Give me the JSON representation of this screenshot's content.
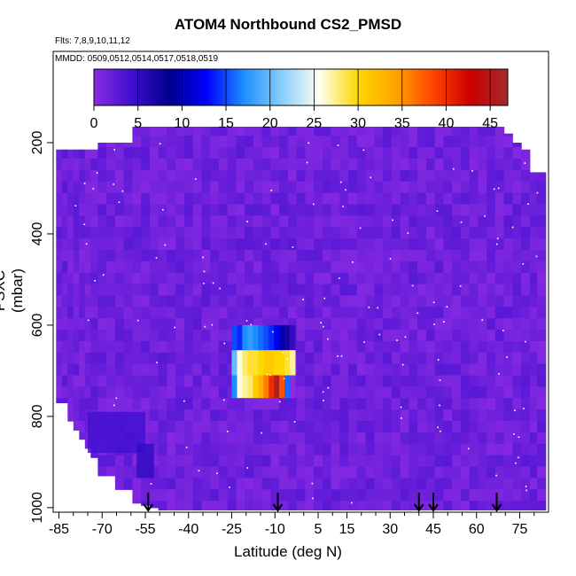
{
  "chart_data": {
    "type": "heatmap",
    "title": "ATOM4 Northbound CS2_PMSD",
    "subtitle_flights": "Flts: 7,8,9,10,11,12",
    "subtitle_dates": "MMDD: 0509,0512,0514,0517,0518,0519",
    "xlabel": "Latitude (deg N)",
    "ylabel": "PSXC (mbar)",
    "xlim": [
      -87,
      85
    ],
    "ylim": [
      1010,
      0
    ],
    "x_ticks": [
      -85,
      -70,
      -55,
      -40,
      -25,
      -10,
      5,
      15,
      30,
      45,
      60,
      75
    ],
    "x_minor_ticks": [
      -80,
      -75,
      -65,
      -60,
      -50,
      -45,
      -35,
      -30,
      -20,
      -15,
      -5,
      0,
      10,
      20,
      25,
      35,
      40,
      50,
      55,
      65,
      70,
      80
    ],
    "y_ticks": [
      200,
      400,
      600,
      800,
      1000
    ],
    "colorbar": {
      "range": [
        0,
        47
      ],
      "ticks": [
        0,
        5,
        10,
        15,
        20,
        25,
        30,
        35,
        40,
        45
      ],
      "colors": [
        "#8a2be2",
        "#3f0fd0",
        "#00008b",
        "#0000ff",
        "#1e90ff",
        "#87cefa",
        "#fffff0",
        "#ffd700",
        "#ffa500",
        "#ff4500",
        "#cc0000",
        "#a52a2a"
      ]
    },
    "profiles": [
      {
        "lat": -85,
        "ptop": 215,
        "pbot": 770
      },
      {
        "lat": -83,
        "ptop": 215,
        "pbot": 770
      },
      {
        "lat": -81,
        "ptop": 215,
        "pbot": 810
      },
      {
        "lat": -79,
        "ptop": 215,
        "pbot": 830
      },
      {
        "lat": -77,
        "ptop": 215,
        "pbot": 850
      },
      {
        "lat": -75,
        "ptop": 215,
        "pbot": 870
      },
      {
        "lat": -73,
        "ptop": 215,
        "pbot": 890
      },
      {
        "lat": -70,
        "ptop": 200,
        "pbot": 930
      },
      {
        "lat": -67,
        "ptop": 200,
        "pbot": 930
      },
      {
        "lat": -64,
        "ptop": 200,
        "pbot": 960
      },
      {
        "lat": -61,
        "ptop": 200,
        "pbot": 960
      },
      {
        "lat": -58,
        "ptop": 165,
        "pbot": 990
      },
      {
        "lat": -55,
        "ptop": 165,
        "pbot": 995
      },
      {
        "lat": -52,
        "ptop": 165,
        "pbot": 1000
      },
      {
        "lat": -49,
        "ptop": 165,
        "pbot": 1005
      },
      {
        "lat": -46,
        "ptop": 165,
        "pbot": 1005
      },
      {
        "lat": -43,
        "ptop": 165,
        "pbot": 1005
      },
      {
        "lat": -40,
        "ptop": 165,
        "pbot": 1005
      },
      {
        "lat": -37,
        "ptop": 165,
        "pbot": 1005
      },
      {
        "lat": -34,
        "ptop": 165,
        "pbot": 1005
      },
      {
        "lat": -31,
        "ptop": 165,
        "pbot": 1005
      },
      {
        "lat": -28,
        "ptop": 165,
        "pbot": 1005
      },
      {
        "lat": -25,
        "ptop": 165,
        "pbot": 1005
      },
      {
        "lat": -22,
        "ptop": 165,
        "pbot": 1005
      },
      {
        "lat": -19,
        "ptop": 165,
        "pbot": 1005
      },
      {
        "lat": -16,
        "ptop": 165,
        "pbot": 1005
      },
      {
        "lat": -13,
        "ptop": 165,
        "pbot": 1005
      },
      {
        "lat": -10,
        "ptop": 165,
        "pbot": 1005
      },
      {
        "lat": -7,
        "ptop": 165,
        "pbot": 1005
      },
      {
        "lat": -4,
        "ptop": 165,
        "pbot": 1005
      },
      {
        "lat": -1,
        "ptop": 165,
        "pbot": 1005
      },
      {
        "lat": 2,
        "ptop": 165,
        "pbot": 1005
      },
      {
        "lat": 5,
        "ptop": 165,
        "pbot": 1005
      },
      {
        "lat": 8,
        "ptop": 165,
        "pbot": 1005
      },
      {
        "lat": 11,
        "ptop": 165,
        "pbot": 1005
      },
      {
        "lat": 14,
        "ptop": 165,
        "pbot": 1005
      },
      {
        "lat": 17,
        "ptop": 165,
        "pbot": 1005
      },
      {
        "lat": 20,
        "ptop": 165,
        "pbot": 1005
      },
      {
        "lat": 23,
        "ptop": 165,
        "pbot": 1005
      },
      {
        "lat": 26,
        "ptop": 165,
        "pbot": 1005
      },
      {
        "lat": 29,
        "ptop": 165,
        "pbot": 1005
      },
      {
        "lat": 32,
        "ptop": 165,
        "pbot": 1005
      },
      {
        "lat": 35,
        "ptop": 165,
        "pbot": 1005
      },
      {
        "lat": 38,
        "ptop": 165,
        "pbot": 1005
      },
      {
        "lat": 41,
        "ptop": 165,
        "pbot": 1005
      },
      {
        "lat": 44,
        "ptop": 165,
        "pbot": 1005
      },
      {
        "lat": 47,
        "ptop": 165,
        "pbot": 1005
      },
      {
        "lat": 50,
        "ptop": 165,
        "pbot": 1005
      },
      {
        "lat": 53,
        "ptop": 165,
        "pbot": 1005
      },
      {
        "lat": 56,
        "ptop": 165,
        "pbot": 1005
      },
      {
        "lat": 59,
        "ptop": 165,
        "pbot": 1005
      },
      {
        "lat": 62,
        "ptop": 165,
        "pbot": 1005
      },
      {
        "lat": 65,
        "ptop": 165,
        "pbot": 1005
      },
      {
        "lat": 68,
        "ptop": 165,
        "pbot": 1005
      },
      {
        "lat": 71,
        "ptop": 180,
        "pbot": 1005
      },
      {
        "lat": 74,
        "ptop": 200,
        "pbot": 1005
      },
      {
        "lat": 77,
        "ptop": 215,
        "pbot": 1005
      },
      {
        "lat": 80,
        "ptop": 265,
        "pbot": 1005
      },
      {
        "lat": 82,
        "ptop": 265,
        "pbot": 1005
      }
    ],
    "blue_regions": [
      {
        "lat_min": -75,
        "lat_max": -55,
        "p_min": 790,
        "p_max": 880,
        "value": 4
      },
      {
        "lat_min": -58,
        "lat_max": -52,
        "p_min": 860,
        "p_max": 935,
        "value": 5
      }
    ],
    "enhanced_layer": {
      "lat_min": -25,
      "lat_max": -3,
      "rows": [
        {
          "p_top": 600,
          "p_bot": 655,
          "values": [
            15,
            14,
            17,
            18,
            17,
            16,
            15,
            14,
            12,
            10,
            7,
            5
          ]
        },
        {
          "p_top": 655,
          "p_bot": 710,
          "values": [
            20,
            26,
            28,
            29,
            29,
            30,
            31,
            31,
            30,
            30,
            29,
            27
          ]
        },
        {
          "p_top": 710,
          "p_bot": 760,
          "values": [
            17,
            26,
            27,
            28,
            31,
            33,
            36,
            40,
            46,
            38,
            16,
            0
          ]
        }
      ]
    },
    "sample_markers": [
      -54,
      -9,
      40,
      45,
      67
    ]
  }
}
